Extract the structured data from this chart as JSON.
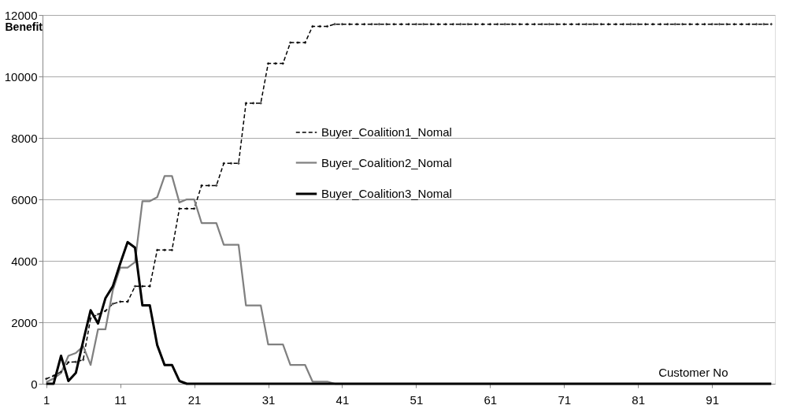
{
  "chart_data": {
    "type": "line",
    "ylabel": "Benefit",
    "xlabel": "Customer No",
    "x": [
      1,
      2,
      3,
      4,
      5,
      6,
      7,
      8,
      9,
      10,
      11,
      12,
      13,
      14,
      15,
      16,
      17,
      18,
      19,
      20,
      21,
      22,
      23,
      24,
      25,
      26,
      27,
      28,
      29,
      30,
      31,
      32,
      33,
      34,
      35,
      36,
      37,
      38,
      39,
      40,
      41,
      42,
      43,
      44,
      45,
      46,
      47,
      48,
      49,
      50,
      51,
      52,
      53,
      54,
      55,
      56,
      57,
      58,
      59,
      60,
      61,
      62,
      63,
      64,
      65,
      66,
      67,
      68,
      69,
      70,
      71,
      72,
      73,
      74,
      75,
      76,
      77,
      78,
      79,
      80,
      81,
      82,
      83,
      84,
      85,
      86,
      87,
      88,
      89,
      90,
      91,
      92,
      93,
      94,
      95,
      96,
      97,
      98,
      99
    ],
    "series": [
      {
        "name": "Buyer_Coalition1_Nomal",
        "color": "#000000",
        "line_style": "dashed",
        "marker": "diamond",
        "values": [
          160,
          260,
          390,
          700,
          710,
          780,
          2130,
          2260,
          2370,
          2600,
          2670,
          2670,
          3170,
          3170,
          3170,
          4350,
          4350,
          4350,
          5700,
          5700,
          5700,
          6450,
          6450,
          6450,
          7170,
          7170,
          7170,
          9130,
          9130,
          9130,
          10420,
          10420,
          10420,
          11100,
          11100,
          11100,
          11630,
          11630,
          11630,
          11700,
          11700,
          11700,
          11700,
          11700,
          11700,
          11700,
          11700,
          11700,
          11700,
          11700,
          11700,
          11700,
          11700,
          11700,
          11700,
          11700,
          11700,
          11700,
          11700,
          11700,
          11700,
          11700,
          11700,
          11700,
          11700,
          11700,
          11700,
          11700,
          11700,
          11700,
          11700,
          11700,
          11700,
          11700,
          11700,
          11700,
          11700,
          11700,
          11700,
          11700,
          11700,
          11700,
          11700,
          11700,
          11700,
          11700,
          11700,
          11700,
          11700,
          11700,
          11700,
          11700,
          11700,
          11700,
          11700,
          11700,
          11700,
          11700,
          11700
        ]
      },
      {
        "name": "Buyer_Coalition2_Nomal",
        "color": "#808080",
        "line_style": "solid",
        "marker": "none",
        "values": [
          50,
          170,
          350,
          910,
          1000,
          1220,
          610,
          1770,
          1770,
          3040,
          3780,
          3780,
          3960,
          5940,
          5940,
          6070,
          6760,
          6760,
          5900,
          6000,
          6000,
          5230,
          5230,
          5230,
          4520,
          4520,
          4520,
          2550,
          2550,
          2550,
          1280,
          1280,
          1280,
          610,
          610,
          610,
          70,
          70,
          70,
          0,
          0,
          0,
          0,
          0,
          0,
          0,
          0,
          0,
          0,
          0,
          0,
          0,
          0,
          0,
          0,
          0,
          0,
          0,
          0,
          0,
          0,
          0,
          0,
          0,
          0,
          0,
          0,
          0,
          0,
          0,
          0,
          0,
          0,
          0,
          0,
          0,
          0,
          0,
          0,
          0,
          0,
          0,
          0,
          0,
          0,
          0,
          0,
          0,
          0,
          0,
          0,
          0,
          0,
          0,
          0,
          0,
          0,
          0,
          0
        ]
      },
      {
        "name": "Buyer_Coalition3_Nomal",
        "color": "#000000",
        "line_style": "solid",
        "marker": "none",
        "values": [
          0,
          0,
          910,
          90,
          350,
          1390,
          2390,
          1960,
          2780,
          3170,
          3910,
          4610,
          4430,
          2550,
          2550,
          1260,
          610,
          610,
          90,
          0,
          0,
          0,
          0,
          0,
          0,
          0,
          0,
          0,
          0,
          0,
          0,
          0,
          0,
          0,
          0,
          0,
          0,
          0,
          0,
          0,
          0,
          0,
          0,
          0,
          0,
          0,
          0,
          0,
          0,
          0,
          0,
          0,
          0,
          0,
          0,
          0,
          0,
          0,
          0,
          0,
          0,
          0,
          0,
          0,
          0,
          0,
          0,
          0,
          0,
          0,
          0,
          0,
          0,
          0,
          0,
          0,
          0,
          0,
          0,
          0,
          0,
          0,
          0,
          0,
          0,
          0,
          0,
          0,
          0,
          0,
          0,
          0,
          0,
          0,
          0,
          0,
          0,
          0,
          0
        ]
      }
    ],
    "xlim": [
      0.5,
      99.5
    ],
    "xticks": [
      1,
      11,
      21,
      31,
      41,
      51,
      61,
      71,
      81,
      91
    ],
    "ylim": [
      0,
      12000
    ],
    "yticks": [
      0,
      2000,
      4000,
      6000,
      8000,
      10000,
      12000
    ],
    "grid": "y",
    "legend": "top"
  }
}
